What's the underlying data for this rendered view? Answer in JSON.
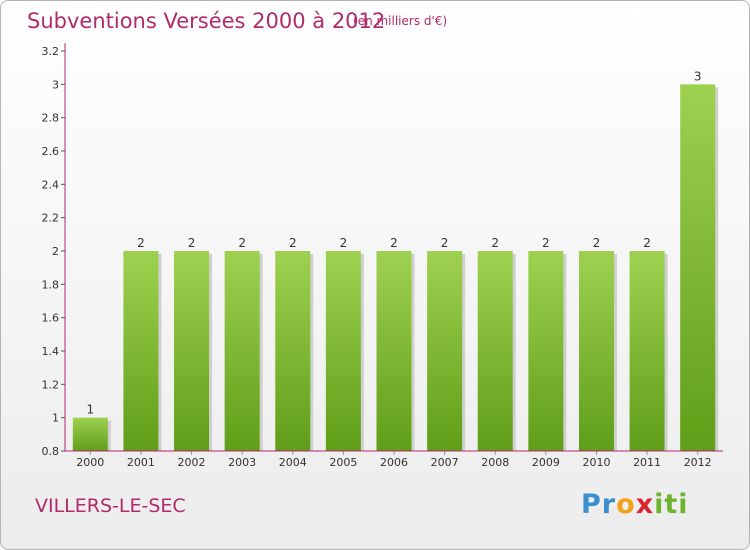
{
  "header": {
    "title": "Subventions Versées 2000 à 2012",
    "subtitle": "(en milliers d'€)"
  },
  "footer": {
    "commune": "VILLERS-LE-SEC",
    "logo_letters": [
      {
        "ch": "P",
        "color": "#3a8fd0"
      },
      {
        "ch": "r",
        "color": "#3a8fd0"
      },
      {
        "ch": "o",
        "color": "#f2a11b"
      },
      {
        "ch": "x",
        "color": "#d9262e"
      },
      {
        "ch": "i",
        "color": "#6cb52d"
      },
      {
        "ch": "t",
        "color": "#6cb52d"
      },
      {
        "ch": "i",
        "color": "#6cb52d"
      }
    ]
  },
  "chart_data": {
    "type": "bar",
    "categories": [
      "2000",
      "2001",
      "2002",
      "2003",
      "2004",
      "2005",
      "2006",
      "2007",
      "2008",
      "2009",
      "2010",
      "2011",
      "2012"
    ],
    "values": [
      1,
      2,
      2,
      2,
      2,
      2,
      2,
      2,
      2,
      2,
      2,
      2,
      3
    ],
    "data_labels": [
      "1",
      "2",
      "2",
      "2",
      "2",
      "2",
      "2",
      "2",
      "2",
      "2",
      "2",
      "2",
      "3"
    ],
    "ylim": [
      0.8,
      3.2
    ],
    "yticks": [
      0.8,
      1,
      1.2,
      1.4,
      1.6,
      1.8,
      2,
      2.2,
      2.4,
      2.6,
      2.8,
      3,
      3.2
    ],
    "ytick_labels": [
      "0.8",
      "1",
      "1.2",
      "1.4",
      "1.6",
      "1.8",
      "2",
      "2.2",
      "2.4",
      "2.6",
      "2.8",
      "3",
      "3.2"
    ],
    "grid": false,
    "bar_color_light": "#9ed150",
    "bar_color_dark": "#5f9e18",
    "axis_color": "#b22a6b",
    "xlabel": "",
    "ylabel": ""
  }
}
